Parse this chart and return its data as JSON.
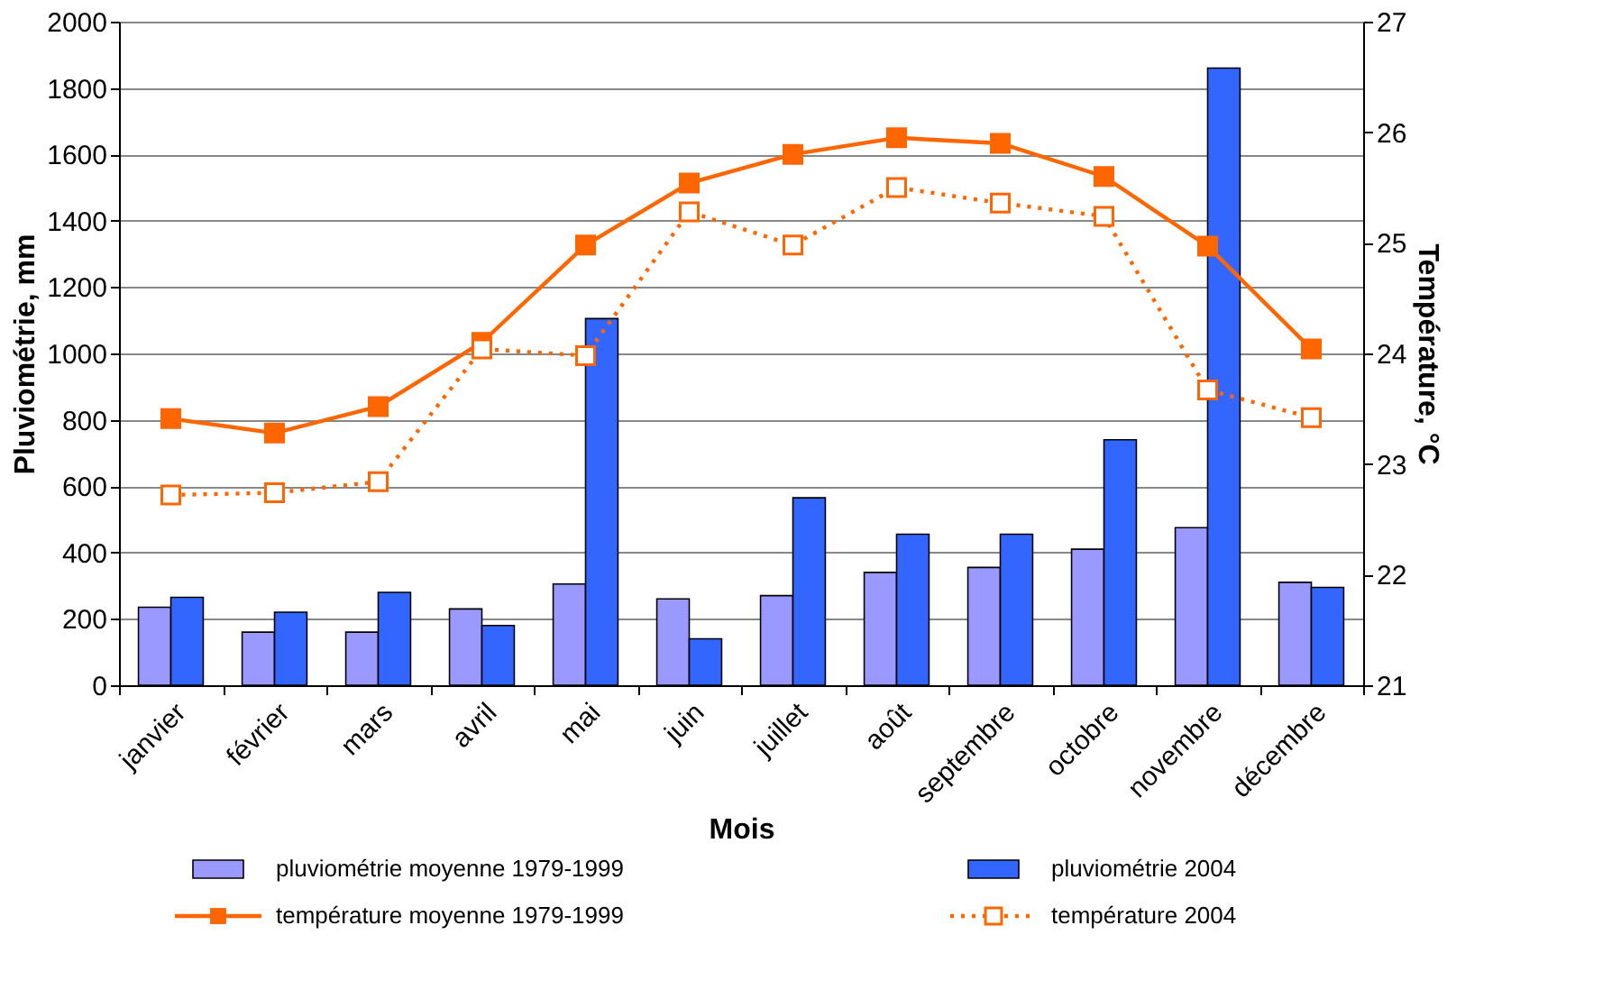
{
  "chart_data": {
    "type": "bar",
    "xlabel": "Mois",
    "ylabel": "Pluviométrie, mm",
    "y2label": "Température, °C",
    "categories": [
      "janvier",
      "février",
      "mars",
      "avril",
      "mai",
      "juin",
      "juillet",
      "août",
      "septembre",
      "octobre",
      "novembre",
      "décembre"
    ],
    "series": [
      {
        "name": "pluviométrie moyenne 1979-1999",
        "color": "#9999ff",
        "values": [
          235,
          160,
          160,
          230,
          305,
          260,
          270,
          340,
          355,
          410,
          475,
          310
        ]
      },
      {
        "name": "pluviométrie 2004",
        "color": "#3366ff",
        "values": [
          265,
          220,
          280,
          180,
          1105,
          140,
          565,
          455,
          455,
          740,
          1860,
          295
        ]
      },
      {
        "name": "température moyenne 1979-1999",
        "type": "line",
        "axis": "y2",
        "color": "#ff6600",
        "marker": "square",
        "line_style": "solid",
        "values": [
          23.41,
          23.28,
          23.52,
          24.1,
          24.98,
          25.54,
          25.8,
          25.95,
          25.9,
          25.6,
          24.97,
          24.04
        ]
      },
      {
        "name": "température 2004",
        "type": "line",
        "axis": "y2",
        "color": "#ff6600",
        "marker": "square",
        "line_style": "dotted",
        "values": [
          22.72,
          22.74,
          22.84,
          24.04,
          23.98,
          25.28,
          24.98,
          25.5,
          25.36,
          25.24,
          23.67,
          23.42
        ]
      }
    ],
    "ylim": [
      0,
      2000
    ],
    "yticks": [
      0,
      200,
      400,
      600,
      800,
      1000,
      1200,
      1400,
      1600,
      1800,
      2000
    ],
    "y2lim": [
      21,
      27
    ],
    "y2ticks": [
      21,
      22,
      23,
      24,
      25,
      26,
      27
    ],
    "grid": "y",
    "legend": "bottom"
  }
}
